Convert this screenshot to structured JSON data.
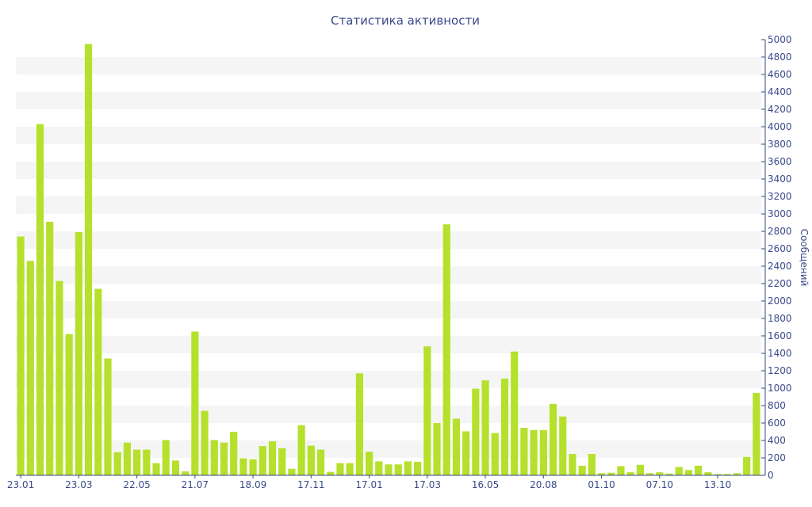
{
  "chart_data": {
    "type": "bar",
    "title": "Статистика активности",
    "xlabel": "",
    "ylabel": "Сообщений",
    "ylim": [
      0,
      5000
    ],
    "ytick_step": 200,
    "y_axis_position": "right",
    "grid": "alternating horizontal bands",
    "bar_color": "#b5e02b",
    "text_color": "#39498a",
    "band_color": "#f5f5f5",
    "xtick_labels": [
      {
        "index": 0,
        "label": "23.01"
      },
      {
        "index": 6,
        "label": "23.03"
      },
      {
        "index": 12,
        "label": "22.05"
      },
      {
        "index": 18,
        "label": "21.07"
      },
      {
        "index": 24,
        "label": "18.09"
      },
      {
        "index": 30,
        "label": "17.11"
      },
      {
        "index": 36,
        "label": "17.01"
      },
      {
        "index": 42,
        "label": "17.03"
      },
      {
        "index": 48,
        "label": "16.05"
      },
      {
        "index": 54,
        "label": "20.08"
      },
      {
        "index": 60,
        "label": "01.10"
      },
      {
        "index": 66,
        "label": "07.10"
      },
      {
        "index": 72,
        "label": "13.10"
      }
    ],
    "values": [
      2740,
      2460,
      4030,
      2910,
      2230,
      1620,
      2790,
      4950,
      2140,
      1340,
      265,
      375,
      295,
      295,
      140,
      405,
      170,
      45,
      1650,
      740,
      405,
      375,
      500,
      195,
      185,
      335,
      390,
      310,
      75,
      575,
      340,
      295,
      40,
      140,
      140,
      1170,
      270,
      160,
      125,
      125,
      160,
      155,
      1480,
      600,
      2880,
      650,
      505,
      995,
      1090,
      485,
      1110,
      1420,
      545,
      520,
      520,
      820,
      675,
      245,
      110,
      245,
      25,
      30,
      105,
      35,
      120,
      25,
      35,
      20,
      95,
      60,
      110,
      35,
      15,
      15,
      25,
      210,
      945
    ]
  }
}
